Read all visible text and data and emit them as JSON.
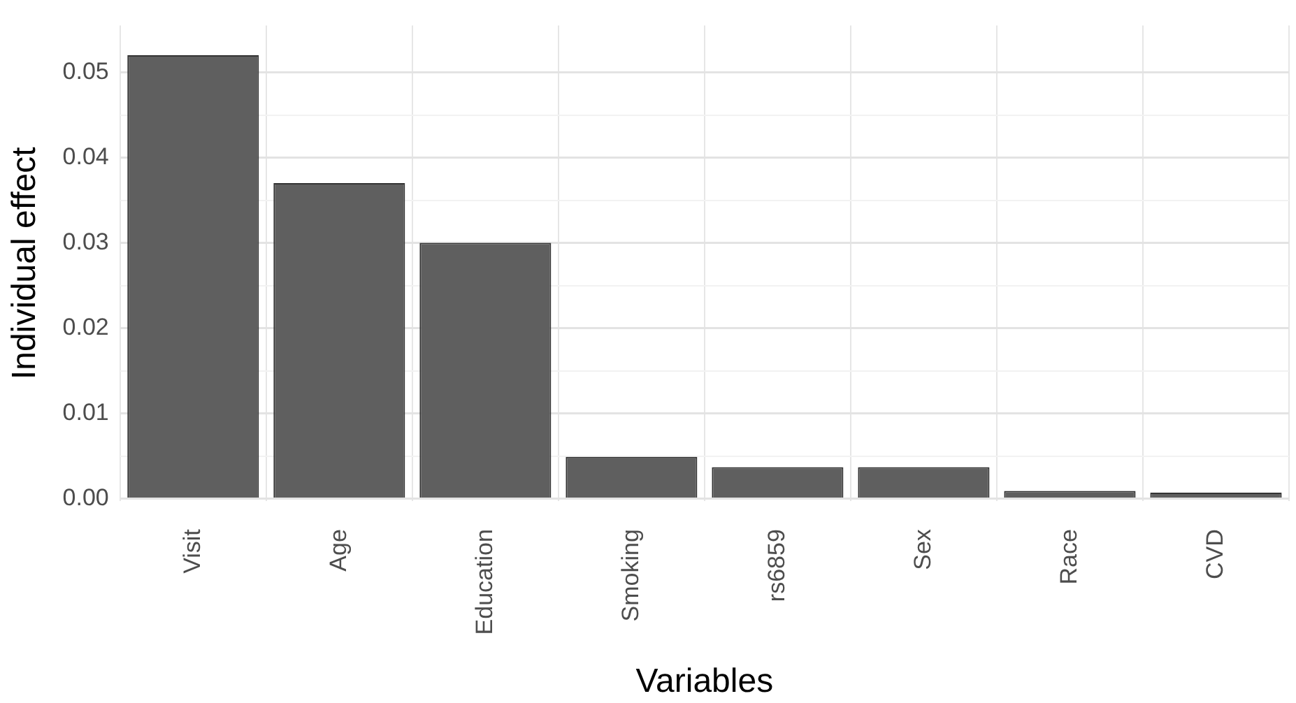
{
  "chart_data": {
    "type": "bar",
    "xlabel": "Variables",
    "ylabel": "Individual effect",
    "categories": [
      "Visit",
      "Age",
      "Education",
      "Smoking",
      "rs6859",
      "Sex",
      "Race",
      "CVD"
    ],
    "values": [
      0.052,
      0.037,
      0.03,
      0.0049,
      0.0037,
      0.0037,
      0.0009,
      0.0007
    ],
    "color": "#5f5f5f",
    "ylim": [
      -0.0003,
      0.0555
    ],
    "yticks": [
      {
        "value": 0,
        "label": "0.00"
      },
      {
        "value": 0.005,
        "label": null
      },
      {
        "value": 0.01,
        "label": "0.01"
      },
      {
        "value": 0.015,
        "label": null
      },
      {
        "value": 0.02,
        "label": "0.02"
      },
      {
        "value": 0.025,
        "label": null
      },
      {
        "value": 0.03,
        "label": "0.03"
      },
      {
        "value": 0.035,
        "label": null
      },
      {
        "value": 0.04,
        "label": "0.04"
      },
      {
        "value": 0.045,
        "label": null
      },
      {
        "value": 0.05,
        "label": "0.05"
      }
    ],
    "grid": true,
    "legend": false
  }
}
